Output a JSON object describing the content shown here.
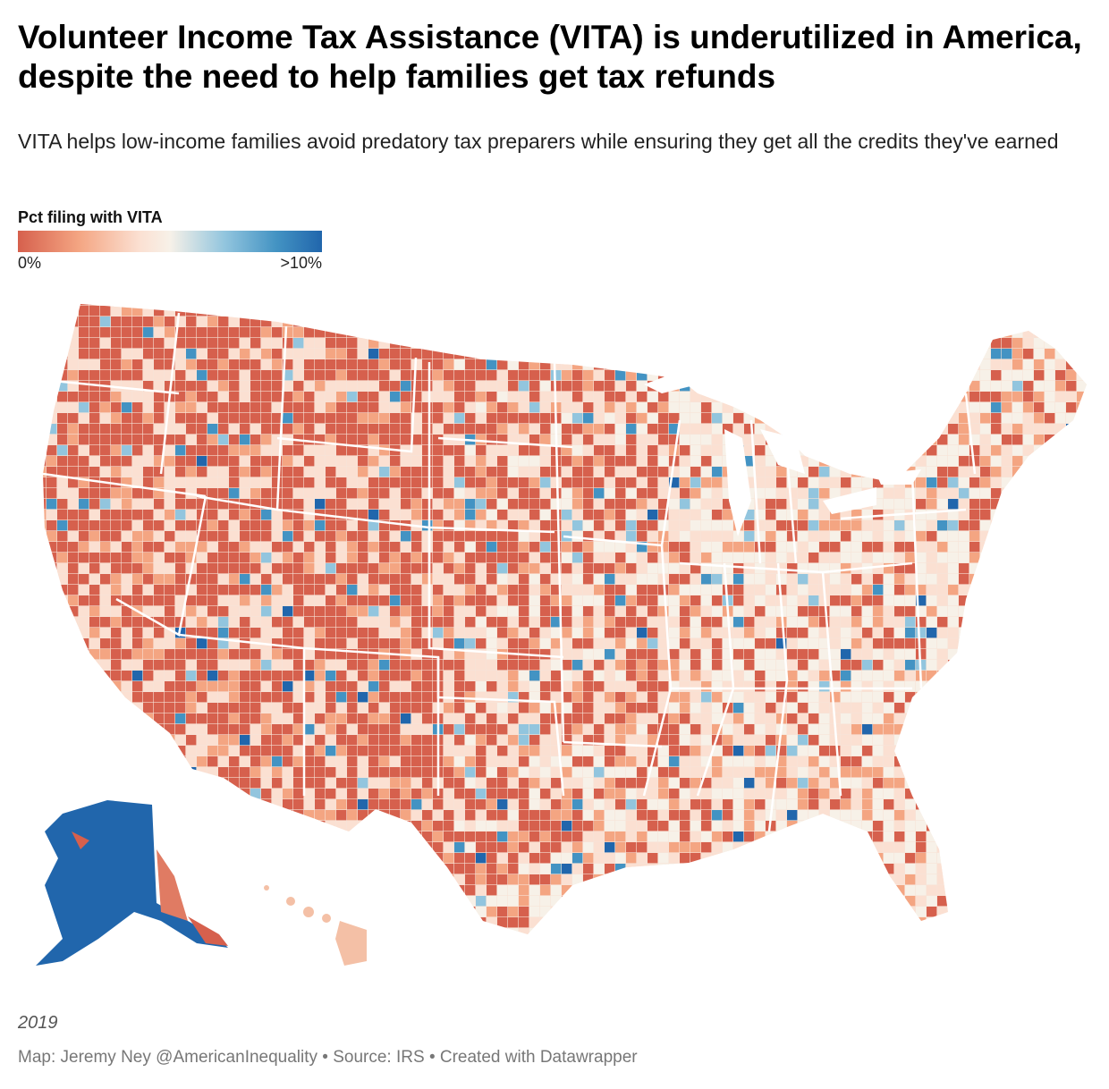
{
  "header": {
    "title": "Volunteer Income Tax Assistance (VITA) is underutilized in America, despite the need to help families get tax refunds",
    "subtitle": "VITA helps low-income families avoid predatory tax preparers while ensuring they get all the credits they've earned"
  },
  "legend": {
    "title": "Pct filing with VITA",
    "min_label": "0%",
    "max_label": ">10%",
    "colors": [
      "#d6604d",
      "#f4a582",
      "#fbe0d2",
      "#f7f1e8",
      "#92c5de",
      "#4393c3",
      "#2166ac"
    ]
  },
  "map": {
    "type": "choropleth",
    "geography": "United States counties",
    "metric": "Pct filing with VITA",
    "scale": "diverging, red = low, blue = high"
  },
  "footer": {
    "year": "2019",
    "credit": "Map: Jeremy Ney @AmericanInequality • Source: IRS • Created with Datawrapper"
  }
}
